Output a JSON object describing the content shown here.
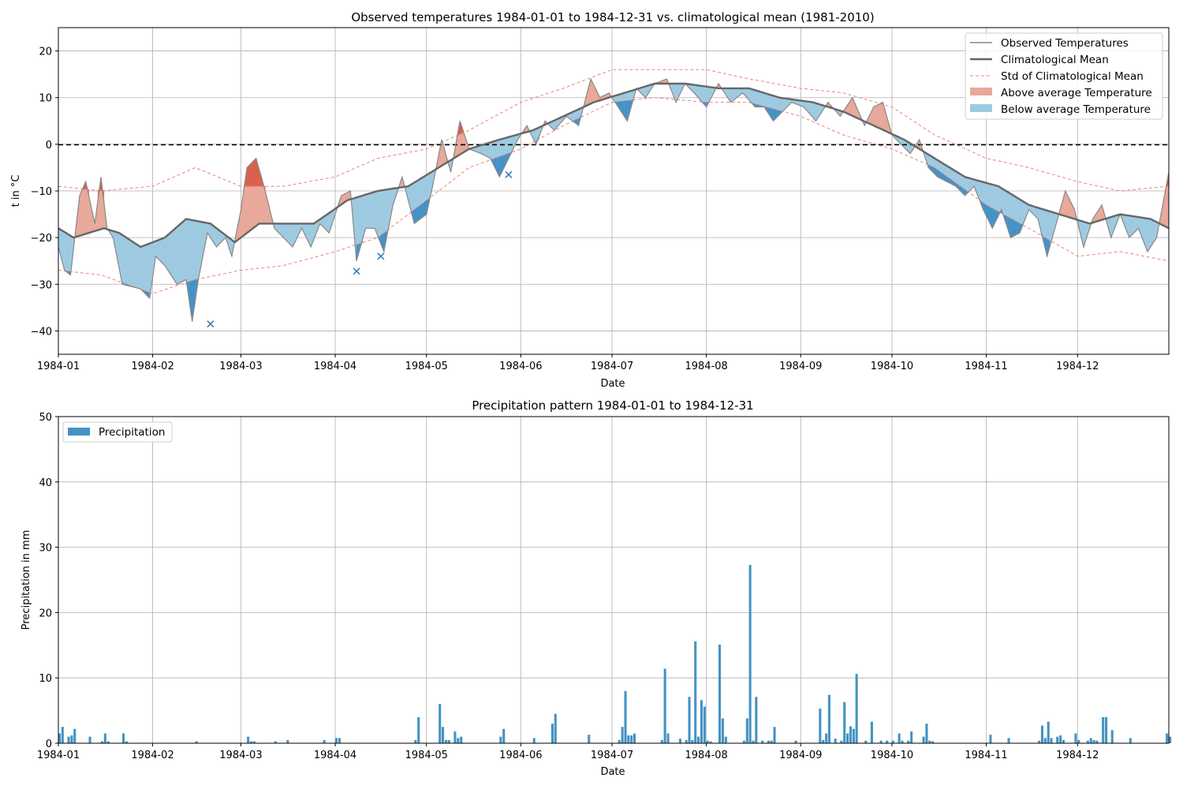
{
  "chart_data": [
    {
      "type": "line",
      "title": "Observed temperatures 1984-01-01 to 1984-12-31 vs. climatological mean (1981-2010)",
      "xlabel": "Date",
      "ylabel": "t in °C",
      "x_ticks": [
        "1984-01",
        "1984-02",
        "1984-03",
        "1984-04",
        "1984-05",
        "1984-06",
        "1984-07",
        "1984-08",
        "1984-09",
        "1984-10",
        "1984-11",
        "1984-12"
      ],
      "y_ticks": [
        -40,
        -30,
        -20,
        -10,
        0,
        10,
        20
      ],
      "xlim": [
        "1984-01-01",
        "1984-12-31"
      ],
      "ylim": [
        -45,
        25
      ],
      "grid": true,
      "legend_position": "top-right",
      "legend": [
        "Observed Temperatures",
        "Climatological Mean",
        "Std of Climatological Mean",
        "Above average Temperature",
        "Below average Temperature"
      ],
      "colors": {
        "above": "#e8a89a",
        "above_extreme": "#d9604a",
        "below": "#9ecae1",
        "below_extreme": "#4292c6",
        "std": "#f08080",
        "mean": "#666666",
        "observed": "#888888",
        "zero_line": "#000000"
      },
      "climatological_mean": {
        "dates": [
          "1984-01-01",
          "1984-01-06",
          "1984-01-16",
          "1984-01-21",
          "1984-01-28",
          "1984-02-05",
          "1984-02-12",
          "1984-02-20",
          "1984-02-28",
          "1984-03-07",
          "1984-03-15",
          "1984-03-25",
          "1984-04-05",
          "1984-04-15",
          "1984-04-25",
          "1984-05-05",
          "1984-05-15",
          "1984-05-25",
          "1984-06-05",
          "1984-06-15",
          "1984-06-25",
          "1984-07-05",
          "1984-07-15",
          "1984-07-25",
          "1984-08-05",
          "1984-08-15",
          "1984-08-25",
          "1984-09-05",
          "1984-09-15",
          "1984-09-25",
          "1984-10-05",
          "1984-10-15",
          "1984-10-25",
          "1984-11-05",
          "1984-11-15",
          "1984-11-25",
          "1984-12-05",
          "1984-12-15",
          "1984-12-25",
          "1984-12-31"
        ],
        "values": [
          -18,
          -20,
          -18,
          -19,
          -22,
          -20,
          -16,
          -17,
          -21,
          -17,
          -17,
          -17,
          -12,
          -10,
          -9,
          -5,
          -1,
          1,
          3,
          6,
          9,
          11,
          13,
          13,
          12,
          12,
          10,
          9,
          7,
          4,
          1,
          -3,
          -7,
          -9,
          -13,
          -15,
          -17,
          -15,
          -16,
          -18
        ]
      },
      "std_upper": {
        "dates": [
          "1984-01-01",
          "1984-01-15",
          "1984-02-01",
          "1984-02-15",
          "1984-03-01",
          "1984-03-15",
          "1984-04-01",
          "1984-04-15",
          "1984-05-01",
          "1984-05-15",
          "1984-06-01",
          "1984-06-15",
          "1984-07-01",
          "1984-07-15",
          "1984-08-01",
          "1984-08-15",
          "1984-09-01",
          "1984-09-15",
          "1984-10-01",
          "1984-10-15",
          "1984-11-01",
          "1984-11-15",
          "1984-12-01",
          "1984-12-15",
          "1984-12-31"
        ],
        "values": [
          -9,
          -10,
          -9,
          -5,
          -9,
          -9,
          -7,
          -3,
          -1,
          3,
          9,
          12,
          16,
          16,
          16,
          14,
          12,
          11,
          8,
          2,
          -3,
          -5,
          -8,
          -10,
          -9
        ]
      },
      "std_lower": {
        "dates": [
          "1984-01-01",
          "1984-01-15",
          "1984-02-01",
          "1984-02-15",
          "1984-03-01",
          "1984-03-15",
          "1984-04-01",
          "1984-04-15",
          "1984-05-01",
          "1984-05-15",
          "1984-06-01",
          "1984-06-15",
          "1984-07-01",
          "1984-07-15",
          "1984-08-01",
          "1984-08-15",
          "1984-09-01",
          "1984-09-15",
          "1984-10-01",
          "1984-10-15",
          "1984-11-01",
          "1984-11-15",
          "1984-12-01",
          "1984-12-15",
          "1984-12-31"
        ],
        "values": [
          -27,
          -28,
          -32,
          -29,
          -27,
          -26,
          -23,
          -20,
          -12,
          -5,
          -1,
          4,
          9,
          10,
          9,
          9,
          6,
          2,
          -1,
          -5,
          -13,
          -18,
          -24,
          -23,
          -25
        ]
      },
      "observed": {
        "dates": [
          "1984-01-01",
          "1984-01-03",
          "1984-01-05",
          "1984-01-08",
          "1984-01-10",
          "1984-01-13",
          "1984-01-15",
          "1984-01-17",
          "1984-01-19",
          "1984-01-22",
          "1984-01-28",
          "1984-01-31",
          "1984-02-02",
          "1984-02-05",
          "1984-02-07",
          "1984-02-09",
          "1984-02-12",
          "1984-02-14",
          "1984-02-16",
          "1984-02-19",
          "1984-02-22",
          "1984-02-25",
          "1984-02-27",
          "1984-03-01",
          "1984-03-03",
          "1984-03-06",
          "1984-03-09",
          "1984-03-12",
          "1984-03-15",
          "1984-03-18",
          "1984-03-21",
          "1984-03-24",
          "1984-03-27",
          "1984-03-30",
          "1984-04-03",
          "1984-04-06",
          "1984-04-08",
          "1984-04-11",
          "1984-04-14",
          "1984-04-17",
          "1984-04-20",
          "1984-04-23",
          "1984-04-27",
          "1984-05-01",
          "1984-05-03",
          "1984-05-06",
          "1984-05-09",
          "1984-05-12",
          "1984-05-15",
          "1984-05-19",
          "1984-05-22",
          "1984-05-25",
          "1984-05-28",
          "1984-05-31",
          "1984-06-03",
          "1984-06-06",
          "1984-06-09",
          "1984-06-12",
          "1984-06-16",
          "1984-06-20",
          "1984-06-24",
          "1984-06-27",
          "1984-06-30",
          "1984-07-03",
          "1984-07-06",
          "1984-07-09",
          "1984-07-12",
          "1984-07-15",
          "1984-07-19",
          "1984-07-22",
          "1984-07-25",
          "1984-07-28",
          "1984-08-01",
          "1984-08-05",
          "1984-08-09",
          "1984-08-13",
          "1984-08-17",
          "1984-08-20",
          "1984-08-23",
          "1984-08-26",
          "1984-08-29",
          "1984-09-02",
          "1984-09-06",
          "1984-09-10",
          "1984-09-14",
          "1984-09-18",
          "1984-09-22",
          "1984-09-25",
          "1984-09-28",
          "1984-10-01",
          "1984-10-04",
          "1984-10-07",
          "1984-10-10",
          "1984-10-13",
          "1984-10-16",
          "1984-10-19",
          "1984-10-22",
          "1984-10-25",
          "1984-10-28",
          "1984-10-31",
          "1984-11-03",
          "1984-11-06",
          "1984-11-09",
          "1984-11-12",
          "1984-11-15",
          "1984-11-18",
          "1984-11-21",
          "1984-11-24",
          "1984-11-27",
          "1984-11-30",
          "1984-12-03",
          "1984-12-06",
          "1984-12-09",
          "1984-12-12",
          "1984-12-15",
          "1984-12-18",
          "1984-12-21",
          "1984-12-24",
          "1984-12-27",
          "1984-12-31"
        ],
        "values": [
          -22,
          -27,
          -28,
          -11,
          -8,
          -17,
          -7,
          -18,
          -20,
          -30,
          -31,
          -33,
          -24,
          -26,
          -28,
          -30,
          -29,
          -38,
          -29,
          -19,
          -22,
          -20,
          -24,
          -14,
          -5,
          -3,
          -10,
          -18,
          -20,
          -22,
          -18,
          -22,
          -17,
          -19,
          -11,
          -10,
          -25,
          -18,
          -18,
          -23,
          -13,
          -7,
          -17,
          -15,
          -9,
          1,
          -6,
          5,
          -1,
          -2,
          -3,
          -7,
          -3,
          1,
          4,
          0,
          5,
          3,
          6,
          4,
          14,
          10,
          11,
          8,
          5,
          12,
          10,
          13,
          14,
          9,
          13,
          11,
          8,
          13,
          9,
          11,
          8,
          8,
          5,
          7,
          9,
          8,
          5,
          9,
          6,
          10,
          4,
          8,
          9,
          2,
          0,
          -2,
          1,
          -5,
          -7,
          -8,
          -9,
          -11,
          -9,
          -14,
          -18,
          -14,
          -20,
          -19,
          -14,
          -16,
          -24,
          -17,
          -10,
          -14,
          -22,
          -16,
          -13,
          -20,
          -15,
          -20,
          -18,
          -23,
          -20,
          -6
        ]
      },
      "extreme_markers": [
        {
          "date": "1984-02-20",
          "value": -38.5
        },
        {
          "date": "1984-04-08",
          "value": -27.2
        },
        {
          "date": "1984-04-16",
          "value": -24
        },
        {
          "date": "1984-05-28",
          "value": -6.5
        }
      ]
    },
    {
      "type": "bar",
      "title": "Precipitation pattern 1984-01-01 to 1984-12-31",
      "xlabel": "Date",
      "ylabel": "Precipitation in mm",
      "x_ticks": [
        "1984-01",
        "1984-02",
        "1984-03",
        "1984-04",
        "1984-05",
        "1984-06",
        "1984-07",
        "1984-08",
        "1984-09",
        "1984-10",
        "1984-11",
        "1984-12"
      ],
      "y_ticks": [
        0,
        10,
        20,
        30,
        40,
        50
      ],
      "xlim": [
        "1984-01-01",
        "1984-12-31"
      ],
      "ylim": [
        0,
        50
      ],
      "grid": true,
      "legend_position": "top-left",
      "series": [
        {
          "name": "Precipitation",
          "color": "#4393c3"
        }
      ],
      "dates": [
        "1984-01-01",
        "1984-01-02",
        "1984-01-04",
        "1984-01-05",
        "1984-01-06",
        "1984-01-11",
        "1984-01-15",
        "1984-01-16",
        "1984-01-17",
        "1984-01-22",
        "1984-01-23",
        "1984-02-15",
        "1984-03-03",
        "1984-03-04",
        "1984-03-05",
        "1984-03-12",
        "1984-03-16",
        "1984-03-28",
        "1984-04-01",
        "1984-04-02",
        "1984-04-27",
        "1984-04-28",
        "1984-05-05",
        "1984-05-06",
        "1984-05-07",
        "1984-05-08",
        "1984-05-10",
        "1984-05-11",
        "1984-05-12",
        "1984-05-25",
        "1984-05-26",
        "1984-06-05",
        "1984-06-11",
        "1984-06-12",
        "1984-06-23",
        "1984-07-03",
        "1984-07-04",
        "1984-07-05",
        "1984-07-06",
        "1984-07-07",
        "1984-07-08",
        "1984-07-17",
        "1984-07-18",
        "1984-07-19",
        "1984-07-23",
        "1984-07-25",
        "1984-07-26",
        "1984-07-27",
        "1984-07-28",
        "1984-07-29",
        "1984-07-30",
        "1984-07-31",
        "1984-08-01",
        "1984-08-02",
        "1984-08-05",
        "1984-08-06",
        "1984-08-07",
        "1984-08-13",
        "1984-08-14",
        "1984-08-15",
        "1984-08-16",
        "1984-08-17",
        "1984-08-19",
        "1984-08-21",
        "1984-08-22",
        "1984-08-23",
        "1984-08-30",
        "1984-09-07",
        "1984-09-08",
        "1984-09-09",
        "1984-09-10",
        "1984-09-12",
        "1984-09-14",
        "1984-09-15",
        "1984-09-16",
        "1984-09-17",
        "1984-09-18",
        "1984-09-19",
        "1984-09-22",
        "1984-09-24",
        "1984-09-27",
        "1984-09-29",
        "1984-10-01",
        "1984-10-03",
        "1984-10-04",
        "1984-10-06",
        "1984-10-07",
        "1984-10-11",
        "1984-10-12",
        "1984-10-13",
        "1984-10-14",
        "1984-11-02",
        "1984-11-08",
        "1984-11-18",
        "1984-11-19",
        "1984-11-20",
        "1984-11-21",
        "1984-11-22",
        "1984-11-24",
        "1984-11-25",
        "1984-11-26",
        "1984-11-30",
        "1984-12-01",
        "1984-12-04",
        "1984-12-05",
        "1984-12-06",
        "1984-12-07",
        "1984-12-09",
        "1984-12-10",
        "1984-12-12",
        "1984-12-18",
        "1984-12-30",
        "1984-12-31"
      ],
      "values": [
        1.5,
        2.5,
        1,
        1.2,
        2.2,
        1,
        0.3,
        1.5,
        0.3,
        1.5,
        0.3,
        0.3,
        1,
        0.3,
        0.3,
        0.3,
        0.5,
        0.5,
        0.8,
        0.8,
        0.5,
        4,
        6,
        2.5,
        0.5,
        0.5,
        1.8,
        0.8,
        1,
        1,
        2.2,
        0.8,
        3,
        4.5,
        1.3,
        0.5,
        2.5,
        8,
        1.2,
        1.2,
        1.5,
        0.5,
        11.4,
        1.5,
        0.7,
        0.5,
        7.1,
        0.5,
        15.6,
        1,
        6.6,
        5.6,
        0.4,
        0.3,
        15.1,
        3.8,
        1,
        0.4,
        3.8,
        27.3,
        0.4,
        7.1,
        0.4,
        0.4,
        0.4,
        2.5,
        0.4,
        5.3,
        0.5,
        1.5,
        7.4,
        0.7,
        0.4,
        6.3,
        1.5,
        2.6,
        2.2,
        10.6,
        0.4,
        3.3,
        0.4,
        0.4,
        0.4,
        1.5,
        0.4,
        0.4,
        1.8,
        1,
        3,
        0.4,
        0.3,
        1.3,
        0.8,
        0.4,
        2.7,
        0.8,
        3.3,
        0.8,
        1,
        1.2,
        0.5,
        1.5,
        0.5,
        0.4,
        0.8,
        0.5,
        0.4,
        4,
        4,
        2,
        0.8,
        1.5,
        1
      ]
    }
  ]
}
